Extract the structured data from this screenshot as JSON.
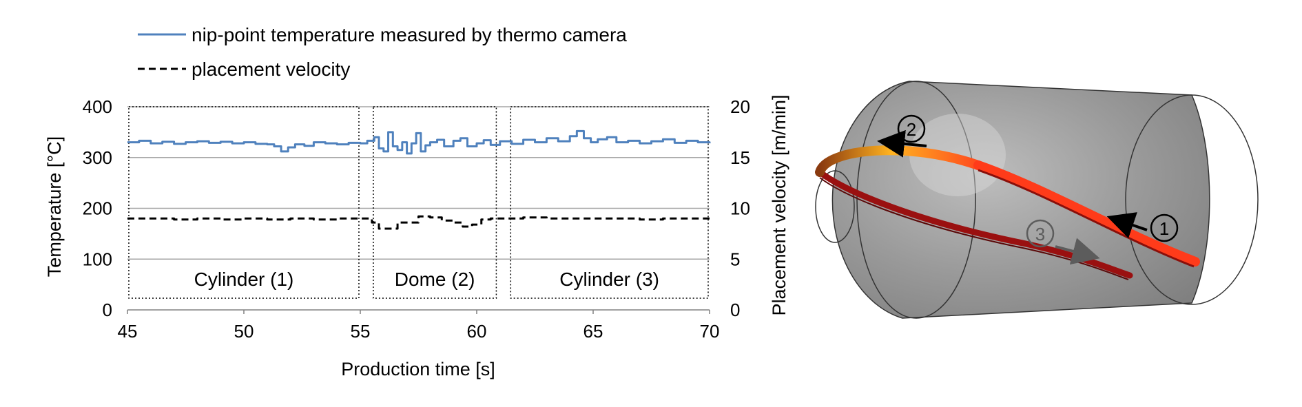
{
  "chart_data": {
    "type": "line",
    "title": "",
    "xlabel": "Production time [s]",
    "ylabel": "Temperature [°C]",
    "y2label": "Placement velocity [m/min]",
    "xlim": [
      45,
      70
    ],
    "ylim": [
      0,
      400
    ],
    "y2lim": [
      0,
      20
    ],
    "x_ticks": [
      45,
      50,
      55,
      60,
      65,
      70
    ],
    "y_ticks": [
      0,
      100,
      200,
      300,
      400
    ],
    "y2_ticks": [
      0,
      5,
      10,
      15,
      20
    ],
    "grid": "horizontal",
    "legend_position": "top",
    "series": [
      {
        "name": "nip-point temperature measured by thermo camera",
        "axis": "left",
        "color": "#4f81bd",
        "style": "solid",
        "x": [
          45.0,
          45.5,
          46.0,
          46.5,
          47.0,
          47.5,
          48.0,
          48.5,
          49.0,
          49.5,
          50.0,
          50.5,
          51.0,
          51.3,
          51.6,
          51.9,
          52.2,
          52.6,
          53.0,
          53.5,
          54.0,
          54.5,
          55.0,
          55.3,
          55.6,
          55.8,
          56.0,
          56.2,
          56.4,
          56.6,
          56.8,
          57.0,
          57.2,
          57.4,
          57.6,
          57.8,
          58.0,
          58.3,
          58.6,
          59.0,
          59.3,
          59.6,
          60.0,
          60.3,
          60.6,
          61.0,
          61.5,
          62.0,
          62.5,
          63.0,
          63.5,
          64.0,
          64.3,
          64.6,
          64.9,
          65.2,
          65.6,
          66.0,
          66.5,
          67.0,
          67.5,
          68.0,
          68.5,
          69.0,
          69.5,
          70.0
        ],
        "y": [
          330,
          333,
          328,
          331,
          327,
          330,
          332,
          329,
          331,
          328,
          330,
          327,
          326,
          322,
          312,
          320,
          326,
          323,
          330,
          328,
          326,
          329,
          328,
          333,
          340,
          318,
          312,
          350,
          322,
          315,
          330,
          308,
          328,
          348,
          312,
          324,
          330,
          335,
          322,
          333,
          338,
          322,
          328,
          334,
          325,
          332,
          327,
          335,
          330,
          338,
          332,
          342,
          352,
          338,
          330,
          336,
          340,
          330,
          333,
          328,
          332,
          336,
          329,
          333,
          330,
          328
        ]
      },
      {
        "name": "placement velocity",
        "axis": "right",
        "color": "#000000",
        "style": "dashed",
        "x": [
          45.0,
          46.0,
          47.0,
          48.0,
          49.0,
          50.0,
          51.0,
          52.0,
          53.0,
          54.0,
          55.0,
          55.3,
          55.5,
          55.8,
          56.2,
          56.6,
          57.0,
          57.5,
          58.0,
          58.5,
          59.0,
          59.4,
          59.8,
          60.2,
          60.6,
          61.0,
          62.0,
          63.0,
          64.0,
          65.0,
          66.0,
          67.0,
          68.0,
          69.0,
          70.0
        ],
        "y": [
          9.0,
          9.0,
          8.9,
          9.0,
          8.9,
          9.0,
          8.9,
          9.0,
          8.9,
          9.0,
          9.0,
          9.0,
          8.6,
          8.0,
          8.0,
          8.6,
          8.6,
          9.2,
          9.1,
          8.8,
          8.6,
          8.2,
          8.4,
          8.9,
          9.0,
          9.0,
          9.1,
          9.0,
          9.0,
          9.0,
          9.0,
          8.9,
          9.0,
          9.0,
          9.0
        ]
      }
    ],
    "regions": [
      {
        "label": "Cylinder (1)",
        "from": 45.0,
        "to": 55.0
      },
      {
        "label": "Dome (2)",
        "from": 55.5,
        "to": 60.9
      },
      {
        "label": "Cylinder (3)",
        "from": 61.4,
        "to": 70.0
      }
    ]
  },
  "illustration": {
    "markers": [
      "①",
      "②",
      "③"
    ],
    "colors": {
      "body": "#9b9b9b",
      "tape_hot": "#ff3b1a",
      "tape_orange": "#f5a623",
      "tape_dark": "#9a1010",
      "arrow3": "#5c5c5c"
    }
  }
}
